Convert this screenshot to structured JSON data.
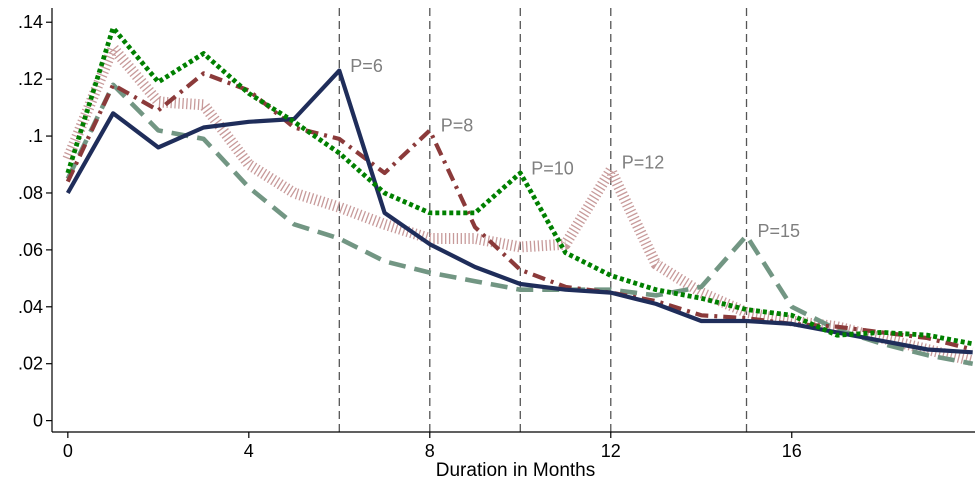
{
  "chart_data": {
    "type": "line",
    "title": "",
    "xlabel": "Duration in Months",
    "ylabel": "",
    "xlim": [
      -0.35,
      20.05
    ],
    "ylim": [
      -0.004,
      0.145
    ],
    "xticks": [
      0,
      4,
      8,
      12,
      16
    ],
    "xtick_labels": [
      "0",
      "4",
      "8",
      "12",
      "16"
    ],
    "yticks": [
      0,
      0.02,
      0.04,
      0.06,
      0.08,
      0.1,
      0.12,
      0.14
    ],
    "ytick_labels": [
      "0",
      ".02",
      ".04",
      ".06",
      ".08",
      ".1",
      ".12",
      ".14"
    ],
    "grid": false,
    "legend": "none",
    "x": [
      0,
      1,
      2,
      3,
      4,
      5,
      6,
      7,
      8,
      9,
      10,
      11,
      12,
      13,
      14,
      15,
      16,
      17,
      18,
      19,
      20
    ],
    "series": [
      {
        "color": "#1f2d5a",
        "style": "solid",
        "values": [
          0.08,
          0.108,
          0.096,
          0.103,
          0.105,
          0.106,
          0.123,
          0.073,
          0.062,
          0.054,
          0.048,
          0.046,
          0.045,
          0.041,
          0.035,
          0.035,
          0.034,
          0.031,
          0.028,
          0.025,
          0.024
        ]
      },
      {
        "color": "#8b3a3a",
        "style": "dashdot",
        "values": [
          0.084,
          0.118,
          0.109,
          0.122,
          0.116,
          0.103,
          0.099,
          0.087,
          0.102,
          0.068,
          0.053,
          0.047,
          0.045,
          0.042,
          0.037,
          0.036,
          0.034,
          0.033,
          0.031,
          0.029,
          0.025
        ]
      },
      {
        "color": "#008000",
        "style": "dotted",
        "values": [
          0.087,
          0.138,
          0.119,
          0.129,
          0.115,
          0.105,
          0.094,
          0.08,
          0.073,
          0.073,
          0.087,
          0.059,
          0.051,
          0.046,
          0.043,
          0.039,
          0.037,
          0.03,
          0.031,
          0.03,
          0.027
        ]
      },
      {
        "color": "#c79a9a",
        "style": "hatched",
        "values": [
          0.092,
          0.131,
          0.112,
          0.111,
          0.09,
          0.08,
          0.075,
          0.069,
          0.064,
          0.064,
          0.061,
          0.062,
          0.088,
          0.055,
          0.045,
          0.038,
          0.035,
          0.033,
          0.029,
          0.025,
          0.021
        ]
      },
      {
        "color": "#729683",
        "style": "dashed",
        "values": [
          0.085,
          0.118,
          0.102,
          0.099,
          0.082,
          0.069,
          0.064,
          0.056,
          0.052,
          0.049,
          0.046,
          0.046,
          0.046,
          0.044,
          0.047,
          0.065,
          0.04,
          0.032,
          0.027,
          0.023,
          0.02
        ]
      }
    ],
    "vlines": [
      {
        "x": 6,
        "label": "P=6",
        "label_y": 0.125
      },
      {
        "x": 8,
        "label": "P=8",
        "label_y": 0.104
      },
      {
        "x": 10,
        "label": "P=10",
        "label_y": 0.089
      },
      {
        "x": 12,
        "label": "P=12",
        "label_y": 0.091
      },
      {
        "x": 15,
        "label": "P=15",
        "label_y": 0.067
      }
    ],
    "vline_color": "#555555"
  }
}
